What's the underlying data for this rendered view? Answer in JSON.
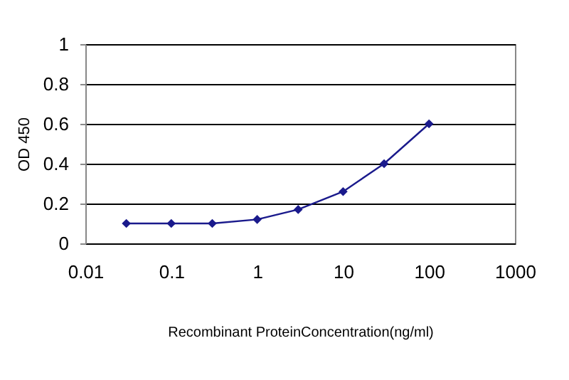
{
  "chart_data": {
    "type": "line",
    "xlabel": "Recombinant ProteinConcentration(ng/ml)",
    "ylabel": "OD 450",
    "x": [
      0.03,
      0.1,
      0.3,
      1,
      3,
      10,
      30,
      100
    ],
    "series": [
      {
        "color": "#1a1a8c",
        "values": [
          0.1,
          0.1,
          0.1,
          0.12,
          0.17,
          0.26,
          0.4,
          0.6
        ]
      }
    ],
    "log": "x",
    "xlim": [
      0.01,
      1000
    ],
    "xticks": [
      0.01,
      0.1,
      1,
      10,
      100,
      1000
    ],
    "ylim": [
      0,
      1
    ],
    "yticks": [
      0,
      0.2,
      0.4,
      0.6,
      0.8,
      1
    ],
    "grid": "y",
    "marker": "diamond",
    "line_style": "solid"
  }
}
